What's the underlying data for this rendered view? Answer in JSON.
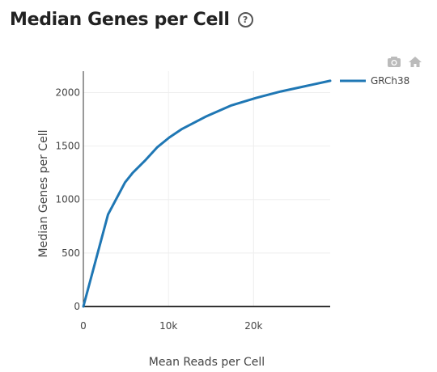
{
  "header": {
    "title": "Median Genes per Cell",
    "help_glyph": "?"
  },
  "modebar": {
    "camera_icon": "camera-icon",
    "home_icon": "home-icon"
  },
  "colors": {
    "series": "#1f77b4",
    "axis": "#333333",
    "grid": "#eeeeee"
  },
  "chart_data": {
    "type": "line",
    "title": "Median Genes per Cell",
    "xlabel": "Mean Reads per Cell",
    "ylabel": "Median Genes per Cell",
    "xlim": [
      0,
      29000
    ],
    "ylim": [
      0,
      2200
    ],
    "x_ticks": [
      0,
      10000,
      20000
    ],
    "x_tick_labels": [
      "0",
      "10k",
      "20k"
    ],
    "y_ticks": [
      0,
      500,
      1000,
      1500,
      2000
    ],
    "y_tick_labels": [
      "0",
      "500",
      "1000",
      "1500",
      "2000"
    ],
    "grid": true,
    "legend_position": "top-right",
    "series": [
      {
        "name": "GRCh38",
        "x": [
          0,
          2900,
          4900,
          5800,
          7200,
          8700,
          10100,
          11600,
          14500,
          17400,
          20300,
          23200,
          26100,
          29000
        ],
        "y": [
          0,
          860,
          1160,
          1250,
          1360,
          1490,
          1580,
          1660,
          1780,
          1880,
          1950,
          2010,
          2060,
          2110
        ]
      }
    ]
  }
}
